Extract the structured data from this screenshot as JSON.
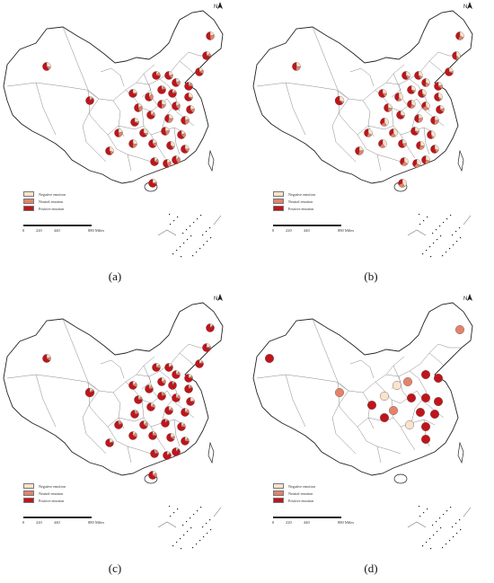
{
  "legend": {
    "negative": "Negative emotion",
    "neutral": "Neutral emotion",
    "positive": "Positive emotion"
  },
  "scale": {
    "ticks": [
      "0",
      "220",
      "440",
      "880 Miles"
    ]
  },
  "north_label": "N",
  "colors": {
    "negative": "#fbe3cc",
    "neutral": "#e5826a",
    "positive": "#c0141a",
    "border": "#555555"
  },
  "panels": [
    {
      "id": "a",
      "label": "(a)",
      "letter": "a"
    },
    {
      "id": "b",
      "label": "(b)",
      "letter": "b"
    },
    {
      "id": "c",
      "label": "(c)",
      "letter": "c"
    },
    {
      "id": "d",
      "label": "(d)",
      "letter": "d"
    }
  ]
}
